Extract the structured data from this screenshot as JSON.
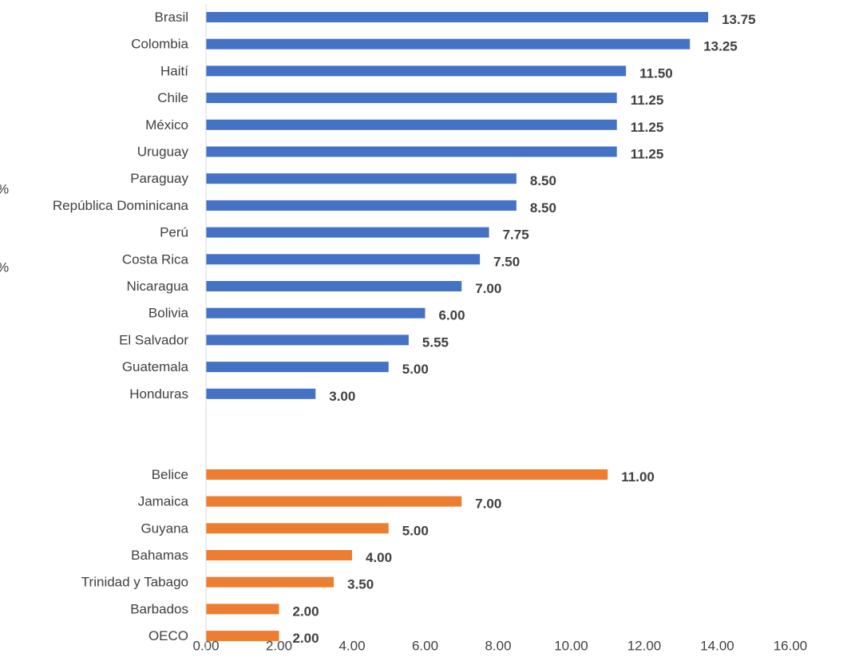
{
  "left_fragments": [
    "%",
    "%"
  ],
  "chart_data": {
    "type": "bar",
    "orientation": "horizontal",
    "title": "",
    "xlabel": "",
    "ylabel": "",
    "xlim": [
      0,
      16
    ],
    "x_ticks": [
      "0.00",
      "2.00",
      "4.00",
      "6.00",
      "8.00",
      "10.00",
      "12.00",
      "14.00",
      "16.00"
    ],
    "grid": false,
    "legend": "none",
    "groups": [
      {
        "color": "#4472c4",
        "categories": [
          "Brasil",
          "Colombia",
          "Haití",
          "Chile",
          "México",
          "Uruguay",
          "Paraguay",
          "República Dominicana",
          "Perú",
          "Costa Rica",
          "Nicaragua",
          "Bolivia",
          "El Salvador",
          "Guatemala",
          "Honduras"
        ],
        "values": [
          13.75,
          13.25,
          11.5,
          11.25,
          11.25,
          11.25,
          8.5,
          8.5,
          7.75,
          7.5,
          7.0,
          6.0,
          5.55,
          5.0,
          3.0
        ],
        "labels": [
          "13.75",
          "13.25",
          "11.50",
          "11.25",
          "11.25",
          "11.25",
          "8.50",
          "8.50",
          "7.75",
          "7.50",
          "7.00",
          "6.00",
          "5.55",
          "5.00",
          "3.00"
        ]
      },
      {
        "color": "#ed7d31",
        "categories": [
          "Belice",
          "Jamaica",
          "Guyana",
          "Bahamas",
          "Trinidad y Tabago",
          "Barbados",
          "OECO"
        ],
        "values": [
          11.0,
          7.0,
          5.0,
          4.0,
          3.5,
          2.0,
          2.0
        ],
        "labels": [
          "11.00",
          "7.00",
          "5.00",
          "4.00",
          "3.50",
          "2.00",
          "2.00"
        ]
      }
    ]
  }
}
